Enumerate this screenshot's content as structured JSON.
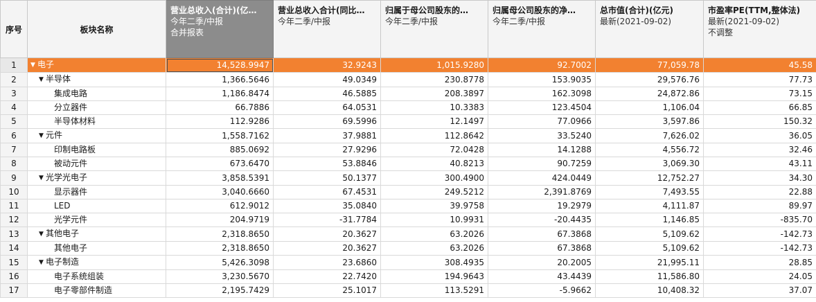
{
  "columns": {
    "seq": "序号",
    "name": "板块名称",
    "c1": {
      "title": "营业总收入(合计)(亿…",
      "sub1": "今年二季/中报",
      "sub2": "合并报表"
    },
    "c2": {
      "title": "营业总收入合计(同比…",
      "sub1": "今年二季/中报"
    },
    "c3": {
      "title": "归属于母公司股东的…",
      "sub1": "今年二季/中报"
    },
    "c4": {
      "title": "归属母公司股东的净…",
      "sub1": "今年二季/中报"
    },
    "c5": {
      "title": "总市值(合计)(亿元)",
      "sub1": "最新(2021-09-02)"
    },
    "c6": {
      "title": "市盈率PE(TTM,整体法)",
      "sub1": "最新(2021-09-02)",
      "sub2": "不调整"
    }
  },
  "rows": [
    {
      "seq": "1",
      "level": 0,
      "expanded": true,
      "name": "电子",
      "c1": "14,528.9947",
      "c2": "32.9243",
      "c3": "1,015.9280",
      "c4": "92.7002",
      "c5": "77,059.78",
      "c6": "45.58"
    },
    {
      "seq": "2",
      "level": 1,
      "expanded": true,
      "name": "半导体",
      "c1": "1,366.5646",
      "c2": "49.0349",
      "c3": "230.8778",
      "c4": "153.9035",
      "c5": "29,576.76",
      "c6": "77.73"
    },
    {
      "seq": "3",
      "level": 2,
      "name": "集成电路",
      "c1": "1,186.8474",
      "c2": "46.5885",
      "c3": "208.3897",
      "c4": "162.3098",
      "c5": "24,872.86",
      "c6": "73.15"
    },
    {
      "seq": "4",
      "level": 2,
      "name": "分立器件",
      "c1": "66.7886",
      "c2": "64.0531",
      "c3": "10.3383",
      "c4": "123.4504",
      "c5": "1,106.04",
      "c6": "66.85"
    },
    {
      "seq": "5",
      "level": 2,
      "name": "半导体材料",
      "c1": "112.9286",
      "c2": "69.5996",
      "c3": "12.1497",
      "c4": "77.0966",
      "c5": "3,597.86",
      "c6": "150.32"
    },
    {
      "seq": "6",
      "level": 1,
      "expanded": true,
      "name": "元件",
      "c1": "1,558.7162",
      "c2": "37.9881",
      "c3": "112.8642",
      "c4": "33.5240",
      "c5": "7,626.02",
      "c6": "36.05"
    },
    {
      "seq": "7",
      "level": 2,
      "name": "印制电路板",
      "c1": "885.0692",
      "c2": "27.9296",
      "c3": "72.0428",
      "c4": "14.1288",
      "c5": "4,556.72",
      "c6": "32.46"
    },
    {
      "seq": "8",
      "level": 2,
      "name": "被动元件",
      "c1": "673.6470",
      "c2": "53.8846",
      "c3": "40.8213",
      "c4": "90.7259",
      "c5": "3,069.30",
      "c6": "43.11"
    },
    {
      "seq": "9",
      "level": 1,
      "expanded": true,
      "name": "光学光电子",
      "c1": "3,858.5391",
      "c2": "50.1377",
      "c3": "300.4900",
      "c4": "424.0449",
      "c5": "12,752.27",
      "c6": "34.30"
    },
    {
      "seq": "10",
      "level": 2,
      "name": "显示器件",
      "c1": "3,040.6660",
      "c2": "67.4531",
      "c3": "249.5212",
      "c4": "2,391.8769",
      "c5": "7,493.55",
      "c6": "22.88"
    },
    {
      "seq": "11",
      "level": 2,
      "name": "LED",
      "c1": "612.9012",
      "c2": "35.0840",
      "c3": "39.9758",
      "c4": "19.2979",
      "c5": "4,111.87",
      "c6": "89.97"
    },
    {
      "seq": "12",
      "level": 2,
      "name": "光学元件",
      "c1": "204.9719",
      "c2": "-31.7784",
      "c3": "10.9931",
      "c4": "-20.4435",
      "c5": "1,146.85",
      "c6": "-835.70"
    },
    {
      "seq": "13",
      "level": 1,
      "expanded": true,
      "name": "其他电子",
      "c1": "2,318.8650",
      "c2": "20.3627",
      "c3": "63.2026",
      "c4": "67.3868",
      "c5": "5,109.62",
      "c6": "-142.73"
    },
    {
      "seq": "14",
      "level": 2,
      "name": "其他电子",
      "c1": "2,318.8650",
      "c2": "20.3627",
      "c3": "63.2026",
      "c4": "67.3868",
      "c5": "5,109.62",
      "c6": "-142.73"
    },
    {
      "seq": "15",
      "level": 1,
      "expanded": true,
      "name": "电子制造",
      "c1": "5,426.3098",
      "c2": "23.6860",
      "c3": "308.4935",
      "c4": "20.2005",
      "c5": "21,995.11",
      "c6": "28.85"
    },
    {
      "seq": "16",
      "level": 2,
      "name": "电子系统组装",
      "c1": "3,230.5670",
      "c2": "22.7420",
      "c3": "194.9643",
      "c4": "43.4439",
      "c5": "11,586.80",
      "c6": "24.05"
    },
    {
      "seq": "17",
      "level": 2,
      "name": "电子零部件制造",
      "c1": "2,195.7429",
      "c2": "25.1017",
      "c3": "113.5291",
      "c4": "-5.9662",
      "c5": "10,408.32",
      "c6": "37.07"
    }
  ],
  "icons": {
    "expand": "caret-down-icon"
  },
  "colors": {
    "selected_row": "#f28130",
    "active_header": "#8c8c8c"
  }
}
